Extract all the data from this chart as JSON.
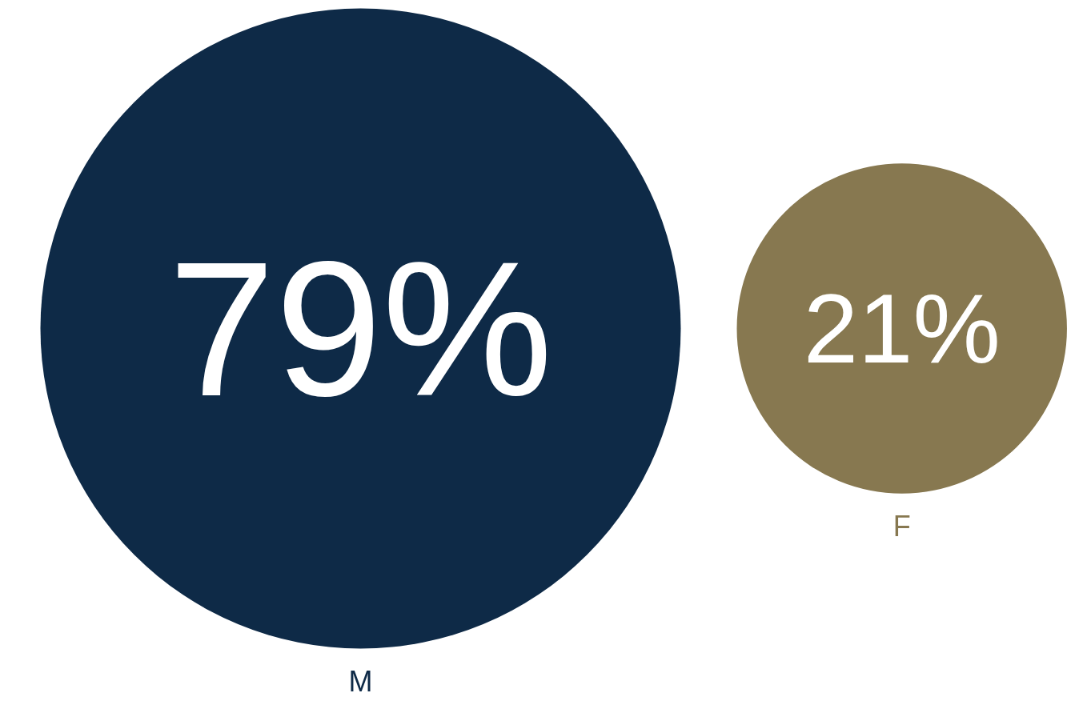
{
  "chart_data": {
    "type": "other",
    "categories": [
      "M",
      "F"
    ],
    "values": [
      79,
      21
    ],
    "value_labels": [
      "79%",
      "21%"
    ],
    "colors": [
      "#0e2a47",
      "#877850"
    ]
  }
}
